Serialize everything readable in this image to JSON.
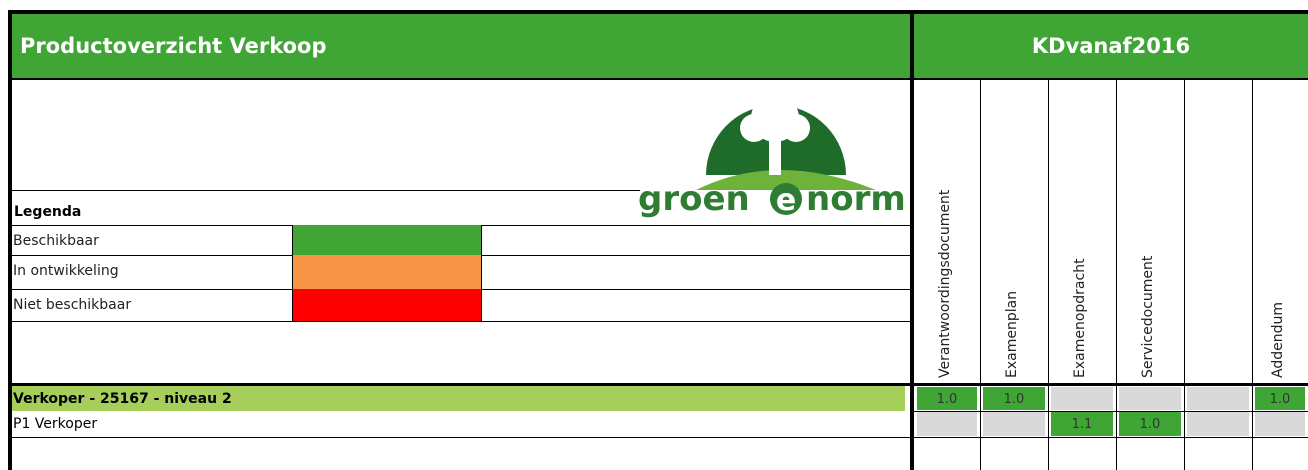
{
  "header": {
    "title": "Productoverzicht Verkoop",
    "kd": "KDvanaf2016"
  },
  "logo": {
    "left": "groen",
    "middle": "e",
    "right": "norm"
  },
  "legend": {
    "title": "Legenda",
    "items": [
      {
        "label": "Beschikbaar",
        "color": "#3fa535"
      },
      {
        "label": "In ontwikkeling",
        "color": "#f79646"
      },
      {
        "label": "Niet beschikbaar",
        "color": "#ff0000"
      }
    ]
  },
  "columns": [
    "Verantwoordingsdocument",
    "Examenplan",
    "Examenopdracht",
    "Servicedocument",
    null,
    "Addendum"
  ],
  "rows": [
    {
      "label": "Verkoper - 25167 - niveau 2",
      "color": "#a5cf5a",
      "bold": true,
      "cells": [
        {
          "text": "1.0",
          "color": "#3fa535"
        },
        {
          "text": "1.0",
          "color": "#3fa535"
        },
        {
          "text": null,
          "color": "#d9d9d9"
        },
        {
          "text": null,
          "color": "#d9d9d9"
        },
        {
          "text": null,
          "color": "#d9d9d9"
        },
        {
          "text": "1.0",
          "color": "#3fa535"
        }
      ]
    },
    {
      "label": "P1 Verkoper",
      "color": "#ffffff",
      "bold": false,
      "cells": [
        {
          "text": null,
          "color": "#d9d9d9"
        },
        {
          "text": null,
          "color": "#d9d9d9"
        },
        {
          "text": "1.1",
          "color": "#3fa535"
        },
        {
          "text": "1.0",
          "color": "#3fa535"
        },
        {
          "text": null,
          "color": "#d9d9d9"
        },
        {
          "text": null,
          "color": "#d9d9d9"
        }
      ]
    }
  ]
}
